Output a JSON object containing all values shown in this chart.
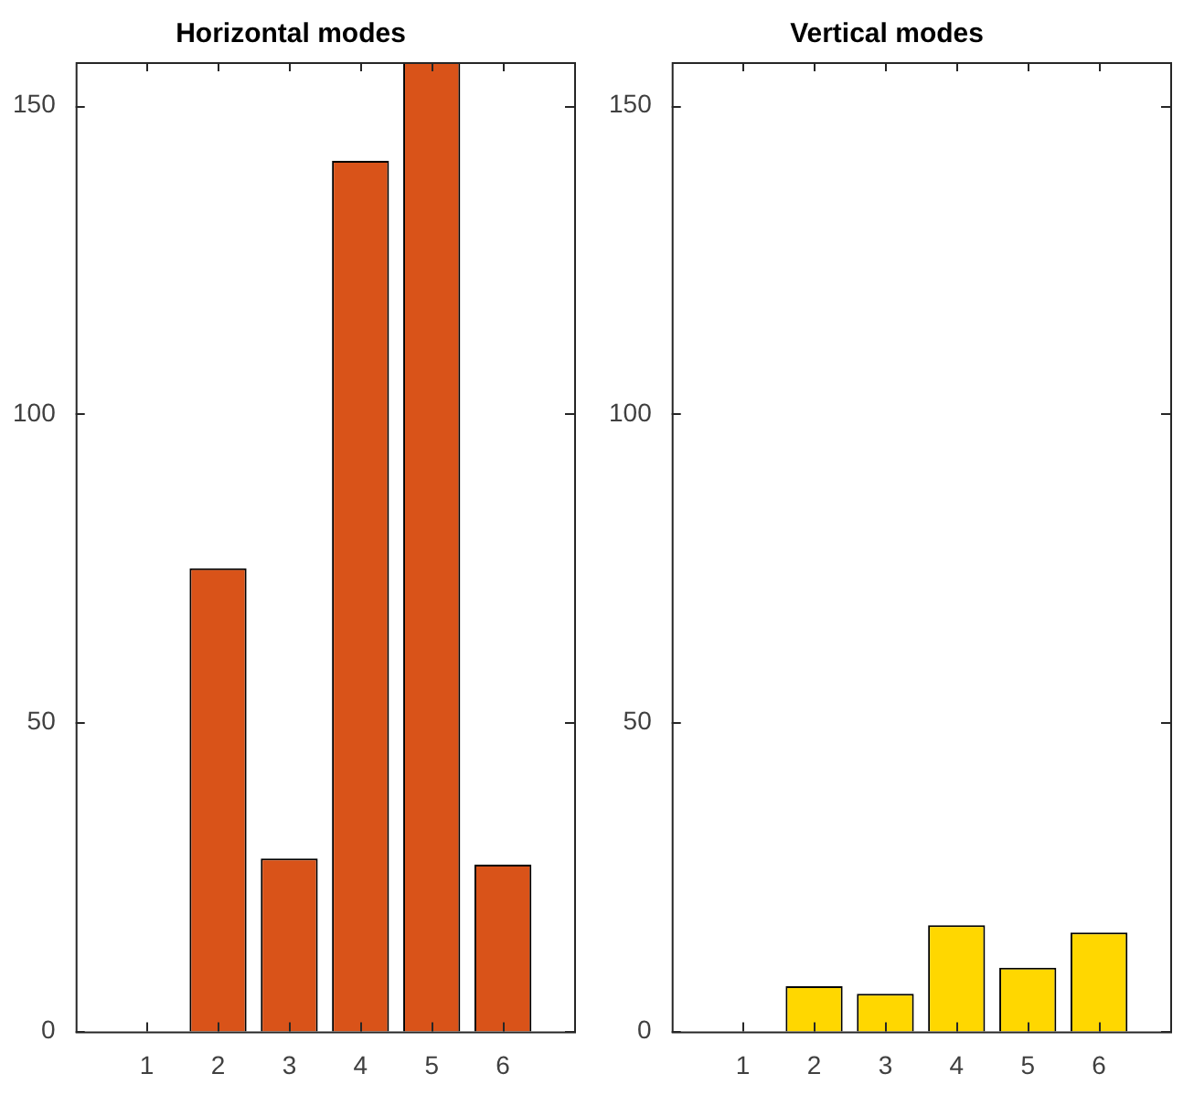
{
  "chart_data": [
    {
      "type": "bar",
      "title": "Horizontal modes",
      "x": [
        1,
        2,
        3,
        4,
        5,
        6
      ],
      "values": [
        0,
        75,
        28,
        141,
        157,
        27
      ],
      "color": "#d95319",
      "xlim": [
        0,
        7
      ],
      "xticks": [
        1,
        2,
        3,
        4,
        5,
        6
      ],
      "ylim": [
        0,
        157
      ],
      "yticks": [
        0,
        50,
        100,
        150
      ]
    },
    {
      "type": "bar",
      "title": "Vertical modes",
      "x": [
        1,
        2,
        3,
        4,
        5,
        6
      ],
      "values": [
        0,
        7.3,
        6.1,
        17.2,
        10.3,
        16
      ],
      "color": "#ffd700",
      "xlim": [
        0,
        7
      ],
      "xticks": [
        1,
        2,
        3,
        4,
        5,
        6
      ],
      "ylim": [
        0,
        157
      ],
      "yticks": [
        0,
        50,
        100,
        150
      ]
    }
  ]
}
